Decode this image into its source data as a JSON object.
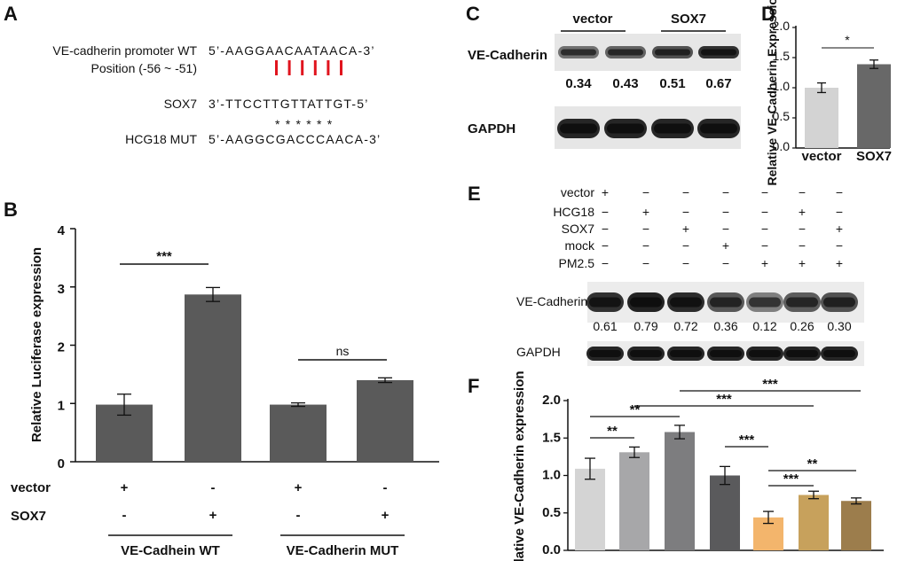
{
  "panels": {
    "a": "A",
    "b": "B",
    "c": "C",
    "d": "D",
    "e": "E",
    "f": "F"
  },
  "panelA": {
    "rows": [
      {
        "label": "VE-cadherin promoter WT",
        "seq": "5’-AAGGAACAATAACA-3’"
      },
      {
        "label": "Position (-56 ~ -51)",
        "seq": ""
      },
      {
        "label": "SOX7",
        "seq": "3’-TTCCTTGTTATTGT-5’"
      },
      {
        "label": "HCG18 MUT",
        "seq": "5’-AAGGCGACCCAACA-3’"
      }
    ],
    "stars": "* * * * * *",
    "mark_color": "#e0141e"
  },
  "panelC": {
    "groups": [
      "vector",
      "SOX7"
    ],
    "protein": "VE-Cadherin",
    "loading": "GAPDH",
    "values": [
      "0.34",
      "0.43",
      "0.51",
      "0.67"
    ]
  },
  "panelE": {
    "conditions": [
      "vector",
      "HCG18",
      "SOX7",
      "mock",
      "PM2.5"
    ],
    "signs": [
      [
        "+",
        "−",
        "−",
        "−",
        "−",
        "−",
        "−"
      ],
      [
        "−",
        "+",
        "−",
        "−",
        "−",
        "+",
        "−"
      ],
      [
        "−",
        "−",
        "+",
        "−",
        "−",
        "−",
        "+"
      ],
      [
        "−",
        "−",
        "−",
        "+",
        "−",
        "−",
        "−"
      ],
      [
        "−",
        "−",
        "−",
        "−",
        "+",
        "+",
        "+"
      ]
    ],
    "protein": "VE-Cadherin",
    "loading": "GAPDH",
    "values": [
      "0.61",
      "0.79",
      "0.72",
      "0.36",
      "0.12",
      "0.26",
      "0.30"
    ]
  },
  "chart_data": [
    {
      "id": "B",
      "type": "bar",
      "ylabel": "Relative Luciferase expression",
      "ylim": [
        0,
        4
      ],
      "yticks": [
        "0",
        "1",
        "2",
        "3",
        "4"
      ],
      "values": [
        0.98,
        2.87,
        0.98,
        1.4
      ],
      "errors": [
        0.18,
        0.12,
        0.03,
        0.04
      ],
      "color": "#5a5a5a",
      "row_labels": [
        "vector",
        "SOX7"
      ],
      "signs": [
        [
          "+",
          "-",
          "+",
          "-"
        ],
        [
          "-",
          "+",
          "-",
          "+"
        ]
      ],
      "group_labels": [
        "VE-Cadhein WT",
        "VE-Cadherin MUT"
      ],
      "significance": [
        "***",
        "ns"
      ]
    },
    {
      "id": "D",
      "type": "bar",
      "ylabel": "Relative VE-Cadherin Expression",
      "ylim": [
        0,
        2.0
      ],
      "yticks": [
        "0.0",
        "0.5",
        "1.0",
        "1.5",
        "2.0"
      ],
      "categories": [
        "vector",
        "SOX7"
      ],
      "values": [
        1.0,
        1.39
      ],
      "errors": [
        0.08,
        0.07
      ],
      "colors": [
        "#d3d3d3",
        "#686868"
      ],
      "significance": [
        "*"
      ]
    },
    {
      "id": "F",
      "type": "bar",
      "ylabel": "Relative VE-Cadherin expression",
      "ylim": [
        0,
        2.0
      ],
      "yticks": [
        "0.0",
        "0.5",
        "1.0",
        "1.5",
        "2.0"
      ],
      "values": [
        1.09,
        1.31,
        1.58,
        1.0,
        0.44,
        0.74,
        0.66
      ],
      "errors": [
        0.14,
        0.07,
        0.09,
        0.12,
        0.08,
        0.05,
        0.04
      ],
      "colors": [
        "#d4d4d4",
        "#a7a7a9",
        "#7d7d7f",
        "#5a5a5c",
        "#f3b56c",
        "#c7a15c",
        "#9c7d4c"
      ],
      "significance": [
        "**",
        "**",
        "***",
        "***",
        "***",
        "***",
        "**"
      ]
    }
  ]
}
